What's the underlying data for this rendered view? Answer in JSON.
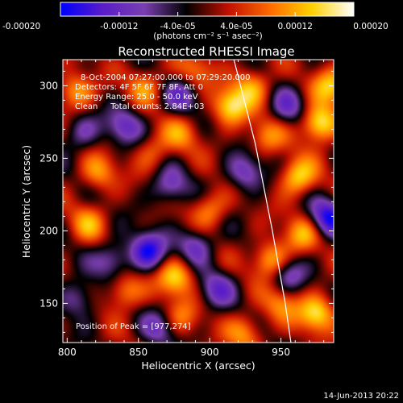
{
  "chart_data": {
    "type": "heatmap",
    "title": "Reconstructed RHESSI Image",
    "xlabel": "Heliocentric X (arcsec)",
    "ylabel": "Heliocentric Y (arcsec)",
    "xlim": [
      797,
      987
    ],
    "ylim": [
      123,
      318
    ],
    "x_ticks": [
      800,
      850,
      900,
      950
    ],
    "y_ticks": [
      150,
      200,
      250,
      300
    ],
    "colorbar": {
      "min": -0.0002,
      "max": 0.0002,
      "ticks": [
        "-0.00020",
        "-0.00012",
        "-4.0e-05",
        "4.0e-05",
        "0.00012",
        "0.00020"
      ],
      "tick_values": [
        -0.0002,
        -0.00012,
        -4e-05,
        4e-05,
        0.00012,
        0.0002
      ],
      "unit_label": "(photons cm⁻² s⁻¹ asec⁻²)",
      "colors": [
        "#0000ff",
        "#5a1dc8",
        "#7a3fb0",
        "#000000",
        "#c01000",
        "#ff6a00",
        "#ffd000",
        "#ffffff"
      ]
    },
    "annotations": [
      "8-Oct-2004 07:27:00.000 to 07:29:20.000",
      "Detectors: 4F 5F 6F 7F 8F, Att 0",
      "Energy Range: 25.0 - 50.0 keV",
      "Clean     Total counts: 2.84E+03"
    ],
    "peak_label": "Position of Peak = [977,274]",
    "peak": [
      977,
      274
    ],
    "blobs": [
      {
        "x": 977,
        "y": 274,
        "v": 1.0
      },
      {
        "x": 915,
        "y": 286,
        "v": 0.85
      },
      {
        "x": 962,
        "y": 237,
        "v": 0.8
      },
      {
        "x": 975,
        "y": 143,
        "v": 0.85
      },
      {
        "x": 943,
        "y": 180,
        "v": 0.75
      },
      {
        "x": 876,
        "y": 168,
        "v": 0.8
      },
      {
        "x": 965,
        "y": 198,
        "v": 0.6
      },
      {
        "x": 806,
        "y": 296,
        "v": 0.65
      },
      {
        "x": 822,
        "y": 240,
        "v": 0.55
      },
      {
        "x": 840,
        "y": 158,
        "v": 0.6
      },
      {
        "x": 900,
        "y": 215,
        "v": 0.55
      },
      {
        "x": 930,
        "y": 300,
        "v": 0.6
      },
      {
        "x": 880,
        "y": 267,
        "v": 0.45
      },
      {
        "x": 925,
        "y": 130,
        "v": 0.55
      },
      {
        "x": 860,
        "y": 255,
        "v": 0.4
      },
      {
        "x": 815,
        "y": 205,
        "v": 0.5
      },
      {
        "x": 950,
        "y": 150,
        "v": 0.5
      },
      {
        "x": 890,
        "y": 310,
        "v": 0.45
      },
      {
        "x": 855,
        "y": 300,
        "v": 0.5
      },
      {
        "x": 880,
        "y": 140,
        "v": 0.45
      },
      {
        "x": 940,
        "y": 265,
        "v": 0.5
      },
      {
        "x": 985,
        "y": 300,
        "v": 0.7
      }
    ],
    "dips": [
      {
        "x": 857,
        "y": 186,
        "v": -0.9
      },
      {
        "x": 983,
        "y": 209,
        "v": -0.9
      },
      {
        "x": 925,
        "y": 240,
        "v": -0.6
      },
      {
        "x": 872,
        "y": 230,
        "v": -0.55
      },
      {
        "x": 832,
        "y": 180,
        "v": -0.55
      },
      {
        "x": 890,
        "y": 190,
        "v": -0.6
      },
      {
        "x": 905,
        "y": 160,
        "v": -0.55
      },
      {
        "x": 840,
        "y": 272,
        "v": -0.6
      },
      {
        "x": 880,
        "y": 293,
        "v": -0.55
      },
      {
        "x": 955,
        "y": 285,
        "v": -0.5
      },
      {
        "x": 865,
        "y": 133,
        "v": -0.5
      },
      {
        "x": 955,
        "y": 170,
        "v": -0.55
      },
      {
        "x": 808,
        "y": 153,
        "v": -0.5
      },
      {
        "x": 810,
        "y": 268,
        "v": -0.45
      }
    ],
    "limb_curve": [
      [
        917,
        318
      ],
      [
        932,
        260
      ],
      [
        944,
        200
      ],
      [
        953,
        150
      ],
      [
        957,
        123
      ]
    ]
  },
  "footer": {
    "timestamp": "14-Jun-2013 20:22"
  }
}
